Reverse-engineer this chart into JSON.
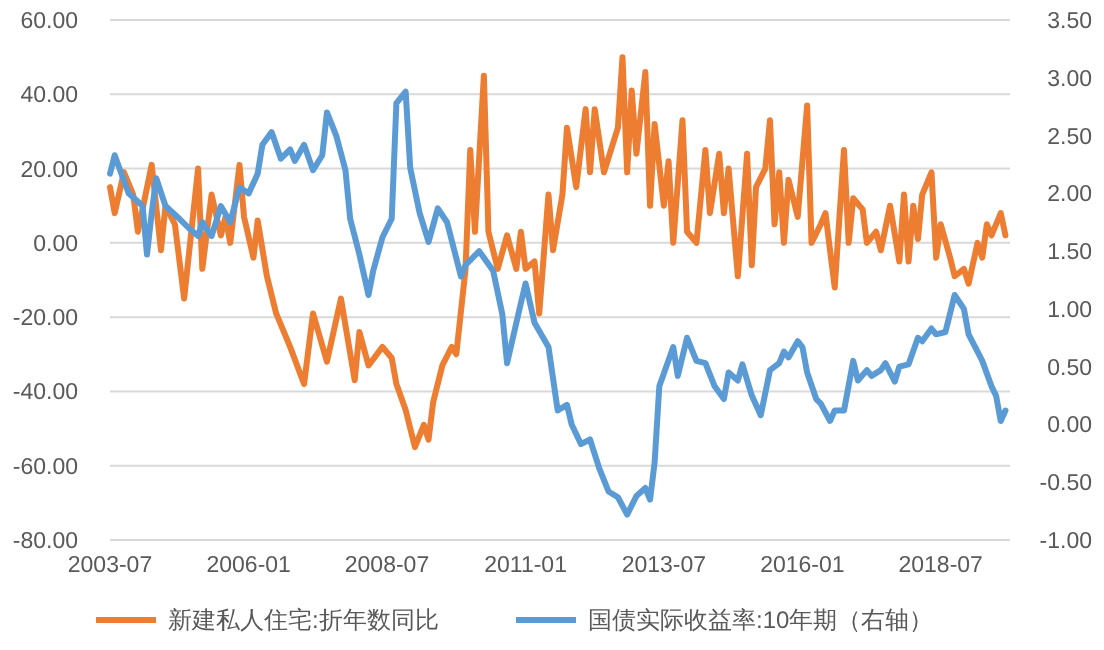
{
  "chart_data": {
    "type": "line",
    "legend": "bottom",
    "grid": "y",
    "xlim": [
      "2003-07",
      "2019-10"
    ],
    "xticks": [
      "2003-07",
      "2006-01",
      "2008-07",
      "2011-01",
      "2013-07",
      "2016-01",
      "2018-07"
    ],
    "ylim": [
      -80,
      60
    ],
    "yticks": [
      {
        "value": -80,
        "label": "-80.00"
      },
      {
        "value": -60,
        "label": "-60.00"
      },
      {
        "value": -40,
        "label": "-40.00"
      },
      {
        "value": -20,
        "label": "-20.00"
      },
      {
        "value": 0,
        "label": "0.00"
      },
      {
        "value": 20,
        "label": "20.00"
      },
      {
        "value": 40,
        "label": "40.00"
      },
      {
        "value": 60,
        "label": "60.00"
      }
    ],
    "y2lim": [
      -1,
      3.5
    ],
    "y2ticks": [
      {
        "value": -1,
        "label": "-1.00"
      },
      {
        "value": -0.5,
        "label": "-0.50"
      },
      {
        "value": 0,
        "label": "0.00"
      },
      {
        "value": 0.5,
        "label": "0.50"
      },
      {
        "value": 1,
        "label": "1.00"
      },
      {
        "value": 1.5,
        "label": "1.50"
      },
      {
        "value": 2,
        "label": "2.00"
      },
      {
        "value": 2.5,
        "label": "2.50"
      },
      {
        "value": 3,
        "label": "3.00"
      },
      {
        "value": 3.5,
        "label": "3.50"
      }
    ],
    "series": [
      {
        "name": "新建私人住宅:折年数同比",
        "color": "#ed7d31",
        "x": [
          "2003-07",
          "2003-08",
          "2003-10",
          "2003-12",
          "2004-01",
          "2004-04",
          "2004-06",
          "2004-07",
          "2004-09",
          "2004-11",
          "2005-02",
          "2005-03",
          "2005-05",
          "2005-07",
          "2005-08",
          "2005-09",
          "2005-11",
          "2005-12",
          "2006-02",
          "2006-03",
          "2006-05",
          "2006-07",
          "2006-10",
          "2007-01",
          "2007-03",
          "2007-06",
          "2007-09",
          "2007-12",
          "2008-01",
          "2008-03",
          "2008-06",
          "2008-08",
          "2008-09",
          "2008-11",
          "2009-01",
          "2009-03",
          "2009-04",
          "2009-05",
          "2009-07",
          "2009-09",
          "2009-10",
          "2009-12",
          "2010-01",
          "2010-02",
          "2010-04",
          "2010-05",
          "2010-07",
          "2010-09",
          "2010-11",
          "2010-12",
          "2011-01",
          "2011-03",
          "2011-04",
          "2011-06",
          "2011-07",
          "2011-09",
          "2011-10",
          "2011-12",
          "2012-02",
          "2012-03",
          "2012-04",
          "2012-06",
          "2012-09",
          "2012-10",
          "2012-11",
          "2012-12",
          "2013-01",
          "2013-03",
          "2013-04",
          "2013-05",
          "2013-07",
          "2013-08",
          "2013-09",
          "2013-11",
          "2013-12",
          "2014-02",
          "2014-04",
          "2014-05",
          "2014-07",
          "2014-08",
          "2014-09",
          "2014-11",
          "2015-01",
          "2015-02",
          "2015-03",
          "2015-05",
          "2015-06",
          "2015-07",
          "2015-08",
          "2015-09",
          "2015-10",
          "2015-12",
          "2016-02",
          "2016-03",
          "2016-05",
          "2016-06",
          "2016-07",
          "2016-08",
          "2016-10",
          "2016-11",
          "2016-12",
          "2017-02",
          "2017-03",
          "2017-05",
          "2017-06",
          "2017-08",
          "2017-10",
          "2017-11",
          "2017-12",
          "2018-01",
          "2018-02",
          "2018-03",
          "2018-05",
          "2018-06",
          "2018-07",
          "2018-09",
          "2018-10",
          "2018-12",
          "2019-01",
          "2019-03",
          "2019-04",
          "2019-05",
          "2019-06",
          "2019-08",
          "2019-09"
        ],
        "values": [
          15,
          8,
          19,
          13,
          3,
          21,
          -2,
          10,
          5,
          -15,
          20,
          -7,
          13,
          2,
          7,
          0,
          21,
          7,
          -4,
          6,
          -9,
          -19,
          -28,
          -38,
          -19,
          -32,
          -15,
          -37,
          -24,
          -33,
          -28,
          -31,
          -38,
          -45,
          -55,
          -49,
          -53,
          -43,
          -33,
          -28,
          -30,
          -7,
          25,
          3,
          45,
          3,
          -7,
          2,
          -7,
          3,
          -7,
          -5,
          -19,
          13,
          -2,
          13,
          31,
          15,
          36,
          19,
          36,
          19,
          31,
          50,
          19,
          41,
          24,
          46,
          10,
          32,
          10,
          22,
          0,
          33,
          3,
          0,
          25,
          8,
          24,
          8,
          20,
          -9,
          24,
          -6,
          15,
          20,
          33,
          5,
          19,
          0,
          17,
          7,
          37,
          0,
          5,
          8,
          -2,
          -12,
          25,
          0,
          12,
          9,
          0,
          3,
          -2,
          10,
          -5,
          13,
          -5,
          10,
          1,
          13,
          19,
          -4,
          5,
          -4,
          -9,
          -7,
          -11,
          0,
          -4,
          5,
          2,
          8,
          2
        ]
      },
      {
        "name": "国债实际收益率:10年期（右轴）",
        "color": "#5b9bd5",
        "axis": "y2",
        "x": [
          "2003-07",
          "2003-08",
          "2003-10",
          "2003-11",
          "2004-02",
          "2004-03",
          "2004-04",
          "2004-05",
          "2004-07",
          "2004-10",
          "2004-12",
          "2005-02",
          "2005-03",
          "2005-05",
          "2005-07",
          "2005-09",
          "2005-11",
          "2006-01",
          "2006-03",
          "2006-04",
          "2006-06",
          "2006-08",
          "2006-10",
          "2006-11",
          "2007-01",
          "2007-03",
          "2007-05",
          "2007-06",
          "2007-08",
          "2007-10",
          "2007-11",
          "2008-01",
          "2008-03",
          "2008-04",
          "2008-06",
          "2008-08",
          "2008-09",
          "2008-11",
          "2008-12",
          "2009-02",
          "2009-04",
          "2009-06",
          "2009-08",
          "2009-11",
          "2009-12",
          "2010-03",
          "2010-06",
          "2010-08",
          "2010-09",
          "2010-12",
          "2011-01",
          "2011-03",
          "2011-06",
          "2011-08",
          "2011-10",
          "2011-11",
          "2012-01",
          "2012-03",
          "2012-05",
          "2012-07",
          "2012-09",
          "2012-11",
          "2013-01",
          "2013-03",
          "2013-04",
          "2013-05",
          "2013-06",
          "2013-09",
          "2013-10",
          "2013-12",
          "2014-02",
          "2014-04",
          "2014-06",
          "2014-08",
          "2014-09",
          "2014-11",
          "2014-12",
          "2015-02",
          "2015-04",
          "2015-06",
          "2015-08",
          "2015-09",
          "2015-10",
          "2015-12",
          "2016-01",
          "2016-02",
          "2016-04",
          "2016-05",
          "2016-07",
          "2016-08",
          "2016-10",
          "2016-12",
          "2017-01",
          "2017-03",
          "2017-04",
          "2017-06",
          "2017-07",
          "2017-09",
          "2017-10",
          "2017-12",
          "2018-02",
          "2018-03",
          "2018-05",
          "2018-06",
          "2018-08",
          "2018-10",
          "2018-12",
          "2019-01",
          "2019-03",
          "2019-04",
          "2019-06",
          "2019-07",
          "2019-08",
          "2019-09"
        ],
        "values": [
          2.17,
          2.33,
          2.11,
          2.0,
          1.89,
          1.47,
          1.83,
          2.13,
          1.89,
          1.78,
          1.7,
          1.63,
          1.75,
          1.63,
          1.89,
          1.75,
          2.05,
          2.0,
          2.17,
          2.42,
          2.53,
          2.3,
          2.38,
          2.28,
          2.42,
          2.2,
          2.33,
          2.7,
          2.5,
          2.2,
          1.78,
          1.47,
          1.12,
          1.33,
          1.62,
          1.78,
          2.78,
          2.88,
          2.22,
          1.83,
          1.58,
          1.87,
          1.75,
          1.28,
          1.38,
          1.5,
          1.33,
          0.95,
          0.53,
          1.05,
          1.22,
          0.88,
          0.67,
          0.12,
          0.17,
          0.0,
          -0.17,
          -0.13,
          -0.38,
          -0.58,
          -0.63,
          -0.78,
          -0.62,
          -0.55,
          -0.65,
          -0.33,
          0.33,
          0.67,
          0.42,
          0.75,
          0.55,
          0.53,
          0.33,
          0.22,
          0.45,
          0.38,
          0.52,
          0.25,
          0.08,
          0.47,
          0.53,
          0.63,
          0.58,
          0.72,
          0.67,
          0.45,
          0.22,
          0.18,
          0.03,
          0.12,
          0.12,
          0.55,
          0.38,
          0.47,
          0.42,
          0.47,
          0.53,
          0.37,
          0.5,
          0.52,
          0.75,
          0.72,
          0.83,
          0.78,
          0.8,
          1.12,
          1.0,
          0.78,
          0.63,
          0.55,
          0.33,
          0.25,
          0.03,
          0.12
        ]
      }
    ]
  }
}
